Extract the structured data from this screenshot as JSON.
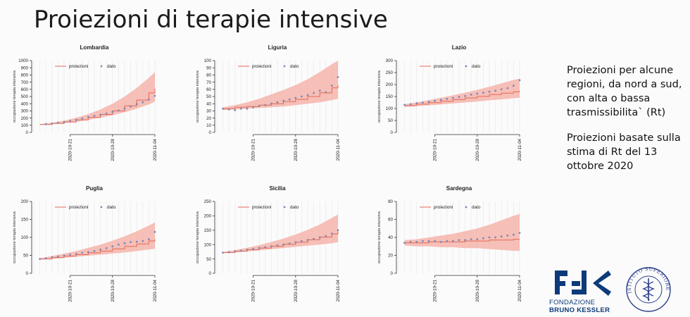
{
  "slide": {
    "title": "Proiezioni di terapie intensive",
    "side_text": [
      "Proiezioni per alcune regioni, da nord a sud, con alta o bassa trasmissibilita` (Rt)",
      "Proiezioni basate sulla stima di Rt del 13 ottobre 2020"
    ]
  },
  "logos": {
    "fbk": {
      "line1": "FONDAZIONE",
      "line2": "BRUNO KESSLER"
    },
    "iss": {
      "text": "ISTITUTO SUPERIORE DI SANITÀ"
    }
  },
  "colors": {
    "band": "#f4b4aa",
    "projection_line": "#e46a57",
    "data_points": "#7f88b4",
    "grid": "#e7e7ea"
  },
  "chart_data": [
    {
      "type": "line",
      "title": "Lombardia",
      "ylabel": "occupazione terapia intensiva",
      "ylim": [
        0,
        1000
      ],
      "yticks": [
        0,
        100,
        200,
        300,
        400,
        500,
        600,
        700,
        800,
        900,
        1000
      ],
      "xlim": [
        "2020-10-15",
        "2020-11-04"
      ],
      "xticks": [
        "2020-10-21",
        "2020-10-28",
        "2020-11-04"
      ],
      "legend": {
        "position": "top",
        "entries": [
          "proiezioni",
          "dato"
        ]
      },
      "series": [
        {
          "name": "proiezioni",
          "x": [
            "2020-10-16",
            "2020-10-18",
            "2020-10-20",
            "2020-10-22",
            "2020-10-24",
            "2020-10-26",
            "2020-10-28",
            "2020-10-30",
            "2020-11-01",
            "2020-11-03",
            "2020-11-04"
          ],
          "values": [
            110,
            125,
            145,
            175,
            210,
            250,
            300,
            370,
            450,
            550,
            610
          ],
          "lower": [
            105,
            115,
            130,
            150,
            175,
            205,
            240,
            280,
            330,
            390,
            430
          ],
          "upper": [
            115,
            135,
            165,
            205,
            255,
            320,
            400,
            500,
            620,
            760,
            840
          ]
        },
        {
          "name": "dato",
          "x": [
            "2020-10-17",
            "2020-10-18",
            "2020-10-19",
            "2020-10-20",
            "2020-10-21",
            "2020-10-22",
            "2020-10-23",
            "2020-10-24",
            "2020-10-25",
            "2020-10-26",
            "2020-10-27",
            "2020-10-28",
            "2020-10-29",
            "2020-10-30",
            "2020-10-31",
            "2020-11-01",
            "2020-11-02",
            "2020-11-03",
            "2020-11-04"
          ],
          "values": [
            118,
            125,
            135,
            145,
            160,
            175,
            195,
            215,
            230,
            245,
            265,
            285,
            305,
            330,
            360,
            395,
            420,
            460,
            510
          ]
        }
      ]
    },
    {
      "type": "line",
      "title": "Liguria",
      "ylabel": "occupazione terapia intensiva",
      "ylim": [
        0,
        100
      ],
      "yticks": [
        0,
        10,
        20,
        30,
        40,
        50,
        60,
        70,
        80,
        90,
        100
      ],
      "xlim": [
        "2020-10-15",
        "2020-11-04"
      ],
      "xticks": [
        "2020-10-21",
        "2020-10-28",
        "2020-11-04"
      ],
      "legend": {
        "position": "top",
        "entries": [
          "proiezioni",
          "dato"
        ]
      },
      "series": [
        {
          "name": "proiezioni",
          "x": [
            "2020-10-16",
            "2020-10-18",
            "2020-10-20",
            "2020-10-22",
            "2020-10-24",
            "2020-10-26",
            "2020-10-28",
            "2020-10-30",
            "2020-11-01",
            "2020-11-03",
            "2020-11-04"
          ],
          "values": [
            33,
            35,
            36,
            38,
            40,
            43,
            46,
            50,
            55,
            62,
            66
          ],
          "lower": [
            31,
            32,
            33,
            34,
            35,
            36,
            38,
            40,
            42,
            45,
            47
          ],
          "upper": [
            35,
            38,
            42,
            47,
            53,
            59,
            66,
            74,
            84,
            95,
            100
          ]
        },
        {
          "name": "dato",
          "x": [
            "2020-10-16",
            "2020-10-17",
            "2020-10-18",
            "2020-10-19",
            "2020-10-20",
            "2020-10-21",
            "2020-10-22",
            "2020-10-23",
            "2020-10-24",
            "2020-10-25",
            "2020-10-26",
            "2020-10-27",
            "2020-10-28",
            "2020-10-29",
            "2020-10-30",
            "2020-10-31",
            "2020-11-01",
            "2020-11-02",
            "2020-11-03",
            "2020-11-04"
          ],
          "values": [
            33,
            32,
            31,
            33,
            33,
            35,
            37,
            38,
            40,
            42,
            44,
            46,
            48,
            50,
            52,
            55,
            58,
            56,
            65,
            77
          ]
        }
      ]
    },
    {
      "type": "line",
      "title": "Lazio",
      "ylabel": "occupazione terapia intensiva",
      "ylim": [
        0,
        300
      ],
      "yticks": [
        0,
        50,
        100,
        150,
        200,
        250,
        300
      ],
      "xlim": [
        "2020-10-15",
        "2020-11-04"
      ],
      "xticks": [
        "2020-10-21",
        "2020-10-28",
        "2020-11-04"
      ],
      "legend": {
        "position": "top",
        "entries": [
          "proiezioni",
          "dato"
        ]
      },
      "series": [
        {
          "name": "proiezioni",
          "x": [
            "2020-10-16",
            "2020-10-18",
            "2020-10-20",
            "2020-10-22",
            "2020-10-24",
            "2020-10-26",
            "2020-10-28",
            "2020-10-30",
            "2020-11-01",
            "2020-11-03",
            "2020-11-04"
          ],
          "values": [
            112,
            118,
            124,
            130,
            137,
            144,
            151,
            158,
            164,
            170,
            173
          ],
          "lower": [
            106,
            110,
            113,
            117,
            121,
            125,
            129,
            134,
            138,
            143,
            145
          ],
          "upper": [
            118,
            126,
            135,
            145,
            155,
            166,
            178,
            191,
            205,
            219,
            225
          ]
        },
        {
          "name": "dato",
          "x": [
            "2020-10-16",
            "2020-10-17",
            "2020-10-18",
            "2020-10-19",
            "2020-10-20",
            "2020-10-21",
            "2020-10-22",
            "2020-10-23",
            "2020-10-24",
            "2020-10-25",
            "2020-10-26",
            "2020-10-27",
            "2020-10-28",
            "2020-10-29",
            "2020-10-30",
            "2020-10-31",
            "2020-11-01",
            "2020-11-02",
            "2020-11-03",
            "2020-11-04"
          ],
          "values": [
            115,
            118,
            122,
            125,
            128,
            132,
            136,
            140,
            144,
            148,
            152,
            158,
            162,
            166,
            170,
            174,
            180,
            185,
            195,
            218
          ]
        }
      ]
    },
    {
      "type": "line",
      "title": "Puglia",
      "ylabel": "occupazione terapia intensiva",
      "ylim": [
        0,
        200
      ],
      "yticks": [
        0,
        50,
        100,
        150,
        200
      ],
      "xlim": [
        "2020-10-15",
        "2020-11-04"
      ],
      "xticks": [
        "2020-10-21",
        "2020-10-28",
        "2020-11-04"
      ],
      "legend": {
        "position": "top",
        "entries": [
          "proiezioni",
          "dato"
        ]
      },
      "series": [
        {
          "name": "proiezioni",
          "x": [
            "2020-10-16",
            "2020-10-18",
            "2020-10-20",
            "2020-10-22",
            "2020-10-24",
            "2020-10-26",
            "2020-10-28",
            "2020-10-30",
            "2020-11-01",
            "2020-11-03",
            "2020-11-04"
          ],
          "values": [
            40,
            44,
            48,
            52,
            57,
            62,
            68,
            75,
            82,
            90,
            95
          ],
          "lower": [
            38,
            40,
            43,
            46,
            49,
            52,
            55,
            58,
            62,
            66,
            68
          ],
          "upper": [
            42,
            48,
            55,
            62,
            71,
            80,
            91,
            103,
            117,
            133,
            142
          ]
        },
        {
          "name": "dato",
          "x": [
            "2020-10-16",
            "2020-10-17",
            "2020-10-18",
            "2020-10-19",
            "2020-10-20",
            "2020-10-21",
            "2020-10-22",
            "2020-10-23",
            "2020-10-24",
            "2020-10-25",
            "2020-10-26",
            "2020-10-27",
            "2020-10-28",
            "2020-10-29",
            "2020-10-30",
            "2020-10-31",
            "2020-11-01",
            "2020-11-02",
            "2020-11-03",
            "2020-11-04"
          ],
          "values": [
            40,
            42,
            45,
            47,
            49,
            52,
            54,
            57,
            59,
            62,
            66,
            70,
            75,
            80,
            84,
            87,
            88,
            90,
            95,
            115
          ]
        }
      ]
    },
    {
      "type": "line",
      "title": "Sicilia",
      "ylabel": "occupazione terapia intensiva",
      "ylim": [
        0,
        250
      ],
      "yticks": [
        0,
        50,
        100,
        150,
        200,
        250
      ],
      "xlim": [
        "2020-10-15",
        "2020-11-04"
      ],
      "xticks": [
        "2020-10-21",
        "2020-10-28",
        "2020-11-04"
      ],
      "legend": {
        "position": "top",
        "entries": [
          "proiezioni",
          "dato"
        ]
      },
      "series": [
        {
          "name": "proiezioni",
          "x": [
            "2020-10-16",
            "2020-10-18",
            "2020-10-20",
            "2020-10-22",
            "2020-10-24",
            "2020-10-26",
            "2020-10-28",
            "2020-10-30",
            "2020-11-01",
            "2020-11-03",
            "2020-11-04"
          ],
          "values": [
            72,
            77,
            82,
            88,
            94,
            101,
            108,
            117,
            126,
            137,
            145
          ],
          "lower": [
            70,
            73,
            76,
            80,
            84,
            88,
            92,
            96,
            100,
            105,
            108
          ],
          "upper": [
            74,
            81,
            89,
            98,
            109,
            121,
            135,
            151,
            170,
            193,
            205
          ]
        },
        {
          "name": "dato",
          "x": [
            "2020-10-16",
            "2020-10-17",
            "2020-10-18",
            "2020-10-19",
            "2020-10-20",
            "2020-10-21",
            "2020-10-22",
            "2020-10-23",
            "2020-10-24",
            "2020-10-25",
            "2020-10-26",
            "2020-10-27",
            "2020-10-28",
            "2020-10-29",
            "2020-10-30",
            "2020-10-31",
            "2020-11-01",
            "2020-11-02",
            "2020-11-03",
            "2020-11-04"
          ],
          "values": [
            72,
            74,
            77,
            79,
            82,
            85,
            88,
            91,
            94,
            97,
            100,
            104,
            108,
            112,
            116,
            120,
            125,
            130,
            138,
            150
          ]
        }
      ]
    },
    {
      "type": "line",
      "title": "Sardegna",
      "ylabel": "occupazione terapia intensiva",
      "ylim": [
        0,
        80
      ],
      "yticks": [
        0,
        20,
        40,
        60,
        80
      ],
      "xlim": [
        "2020-10-15",
        "2020-11-04"
      ],
      "xticks": [
        "2020-10-21",
        "2020-10-28",
        "2020-11-04"
      ],
      "legend": {
        "position": "top",
        "entries": [
          "proiezioni",
          "dato"
        ]
      },
      "series": [
        {
          "name": "proiezioni",
          "x": [
            "2020-10-16",
            "2020-10-18",
            "2020-10-20",
            "2020-10-22",
            "2020-10-24",
            "2020-10-26",
            "2020-10-28",
            "2020-10-30",
            "2020-11-01",
            "2020-11-03",
            "2020-11-04"
          ],
          "values": [
            34,
            34,
            35,
            35,
            35,
            36,
            36,
            37,
            37,
            38,
            38
          ],
          "lower": [
            31,
            30,
            30,
            29,
            29,
            28,
            28,
            27,
            26,
            25,
            25
          ],
          "upper": [
            37,
            38,
            40,
            42,
            44,
            47,
            50,
            54,
            59,
            64,
            66
          ]
        },
        {
          "name": "dato",
          "x": [
            "2020-10-16",
            "2020-10-17",
            "2020-10-18",
            "2020-10-19",
            "2020-10-20",
            "2020-10-21",
            "2020-10-22",
            "2020-10-23",
            "2020-10-24",
            "2020-10-25",
            "2020-10-26",
            "2020-10-27",
            "2020-10-28",
            "2020-10-29",
            "2020-10-30",
            "2020-10-31",
            "2020-11-01",
            "2020-11-02",
            "2020-11-03",
            "2020-11-04"
          ],
          "values": [
            34,
            35,
            35,
            36,
            36,
            36,
            35,
            36,
            36,
            37,
            37,
            38,
            38,
            39,
            40,
            40,
            41,
            42,
            43,
            45
          ]
        }
      ]
    }
  ]
}
